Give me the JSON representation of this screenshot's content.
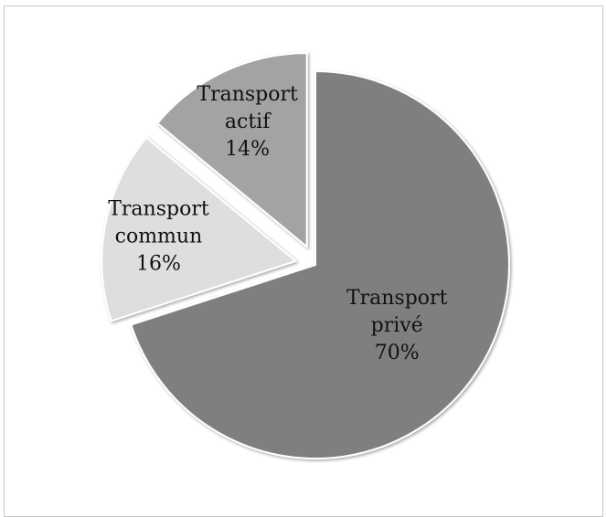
{
  "chart_data": {
    "type": "pie",
    "title": "",
    "legend": "none",
    "slices": [
      {
        "label_lines": [
          "Transport",
          "privé"
        ],
        "percent_label": "70%",
        "value": 70,
        "color": "#7f7f7f",
        "exploded": false
      },
      {
        "label_lines": [
          "Transport",
          "commun"
        ],
        "percent_label": "16%",
        "value": 16,
        "color": "#dedede",
        "exploded": true
      },
      {
        "label_lines": [
          "Transport",
          "actif"
        ],
        "percent_label": "14%",
        "value": 14,
        "color": "#a3a3a3",
        "exploded": true
      }
    ]
  }
}
